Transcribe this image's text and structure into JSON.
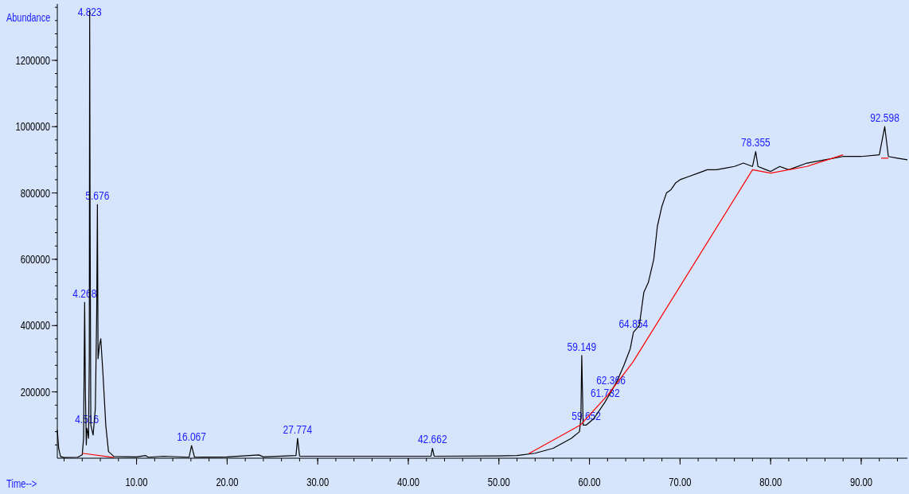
{
  "chart_data": {
    "type": "line",
    "xlabel": "Time-->",
    "ylabel": "Abundance",
    "xlim": [
      1.25,
      95.1
    ],
    "ylim": [
      0,
      1370000
    ],
    "xticks": [
      {
        "value": 10,
        "label": "10.00"
      },
      {
        "value": 20,
        "label": "20.00"
      },
      {
        "value": 30,
        "label": "30.00"
      },
      {
        "value": 40,
        "label": "40.00"
      },
      {
        "value": 50,
        "label": "50.00"
      },
      {
        "value": 60,
        "label": "60.00"
      },
      {
        "value": 70,
        "label": "70.00"
      },
      {
        "value": 80,
        "label": "80.00"
      },
      {
        "value": 90,
        "label": "90.00"
      }
    ],
    "yticks": [
      200000,
      400000,
      600000,
      800000,
      1000000,
      1200000
    ],
    "grid": false,
    "line_style": "solid",
    "series": [
      {
        "color": "#000000",
        "x": [
          1.25,
          1.4,
          1.6,
          2.0,
          3.5,
          4.0,
          4.15,
          4.268,
          4.35,
          4.45,
          4.516,
          4.6,
          4.7,
          4.78,
          4.823,
          4.87,
          4.95,
          5.2,
          5.45,
          5.6,
          5.676,
          5.75,
          5.9,
          6.05,
          6.3,
          6.6,
          6.9,
          7.5,
          10,
          11,
          11.3,
          13,
          15.8,
          16.067,
          16.4,
          20,
          23.5,
          24,
          27.6,
          27.774,
          28,
          35,
          42.5,
          42.662,
          42.85,
          50,
          52,
          54,
          56,
          58,
          58.9,
          59.05,
          59.149,
          59.3,
          59.652,
          60.5,
          61.732,
          62.366,
          63,
          63.8,
          64.5,
          64.854,
          65.5,
          66,
          66.5,
          67.1,
          67.5,
          68,
          68.5,
          69,
          69.5,
          70,
          71,
          72,
          73,
          74,
          75,
          76,
          77,
          78,
          78.355,
          78.6,
          79.5,
          80,
          81,
          82,
          84,
          86,
          88,
          90,
          92,
          92.598,
          93,
          94,
          95.1
        ],
        "values": [
          85000,
          30000,
          5000,
          2000,
          3000,
          10000,
          60000,
          470000,
          200000,
          40000,
          90000,
          80000,
          60000,
          300000,
          1350000,
          720000,
          100000,
          70000,
          150000,
          440000,
          765000,
          300000,
          340000,
          360000,
          250000,
          100000,
          20000,
          5000,
          4000,
          8000,
          3000,
          6000,
          3000,
          38000,
          3000,
          4000,
          10000,
          4000,
          8000,
          60000,
          6000,
          6000,
          6000,
          30000,
          6000,
          7000,
          8000,
          15000,
          30000,
          60000,
          80000,
          120000,
          310000,
          100000,
          100000,
          120000,
          170000,
          200000,
          230000,
          280000,
          330000,
          380000,
          400000,
          500000,
          530000,
          600000,
          700000,
          760000,
          800000,
          810000,
          830000,
          840000,
          850000,
          860000,
          870000,
          870000,
          875000,
          880000,
          890000,
          880000,
          925000,
          880000,
          870000,
          865000,
          880000,
          870000,
          890000,
          900000,
          910000,
          910000,
          915000,
          1000000,
          910000,
          905000,
          900000
        ]
      },
      {
        "color": "#ff0000",
        "x": [
          4.0,
          7.5
        ],
        "values": [
          15000,
          2000
        ]
      },
      {
        "color": "#ff0000",
        "x": [
          53.3,
          59,
          62,
          64.8,
          78,
          80,
          84,
          88
        ],
        "values": [
          14000,
          100000,
          190000,
          290000,
          870000,
          860000,
          880000,
          915000
        ]
      },
      {
        "color": "#ff0000",
        "x": [
          92.2,
          93
        ],
        "values": [
          905000,
          905000
        ]
      }
    ],
    "annotations": [
      {
        "text": "4.268",
        "x": 4.268,
        "y": 470000
      },
      {
        "text": "4.516",
        "x": 4.516,
        "y": 90000
      },
      {
        "text": "4.823",
        "x": 4.823,
        "y": 1350000
      },
      {
        "text": "5.676",
        "x": 5.676,
        "y": 765000
      },
      {
        "text": "16.067",
        "x": 16.067,
        "y": 38000
      },
      {
        "text": "27.774",
        "x": 27.774,
        "y": 60000
      },
      {
        "text": "42.662",
        "x": 42.662,
        "y": 30000
      },
      {
        "text": "59.149",
        "x": 59.149,
        "y": 310000
      },
      {
        "text": "59.652",
        "x": 59.652,
        "y": 100000
      },
      {
        "text": "61.732",
        "x": 61.732,
        "y": 170000
      },
      {
        "text": "62.366",
        "x": 62.366,
        "y": 200000
      },
      {
        "text": "64.854",
        "x": 64.854,
        "y": 380000
      },
      {
        "text": "78.355",
        "x": 78.355,
        "y": 925000
      },
      {
        "text": "92.598",
        "x": 92.598,
        "y": 1000000
      }
    ]
  }
}
